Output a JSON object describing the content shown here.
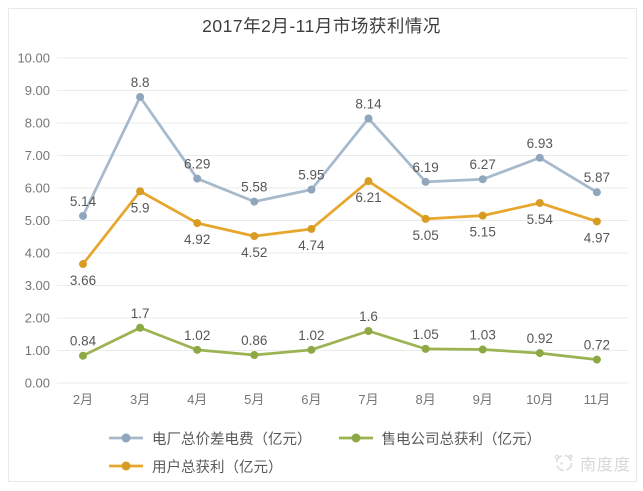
{
  "chart_data": {
    "type": "line",
    "title": "2017年2月-11月市场获利情况",
    "xlabel": "",
    "ylabel": "",
    "categories": [
      "2月",
      "3月",
      "4月",
      "5月",
      "6月",
      "7月",
      "8月",
      "9月",
      "10月",
      "11月"
    ],
    "series": [
      {
        "name": "电厂总价差电费（亿元）",
        "color": "#a7bacc",
        "marker_color": "#8fa6bc",
        "label_position": "above",
        "values": [
          5.14,
          8.8,
          6.29,
          5.58,
          5.95,
          8.14,
          6.19,
          6.27,
          6.93,
          5.87
        ]
      },
      {
        "name": "售电公司总获利（亿元）",
        "color": "#9bb351",
        "marker_color": "#8da844",
        "label_position": "above",
        "values": [
          0.84,
          1.7,
          1.02,
          0.86,
          1.02,
          1.6,
          1.05,
          1.03,
          0.92,
          0.72
        ]
      },
      {
        "name": "用户总获利（亿元）",
        "color": "#e7a62e",
        "marker_color": "#d79c23",
        "label_position": "below",
        "values": [
          3.66,
          5.9,
          4.92,
          4.52,
          4.74,
          6.21,
          5.05,
          5.15,
          5.54,
          4.97
        ]
      }
    ],
    "ylim": [
      0,
      10
    ],
    "ytick_step": 1,
    "ytick_decimals": 2,
    "grid": "horizontal",
    "legend_position": "bottom",
    "legend_order": [
      0,
      1,
      2
    ]
  },
  "colors": {
    "gridline": "#ebebeb",
    "axis_text": "#767676",
    "data_label": "#575757",
    "title_text": "#3d3d3d",
    "legend_text": "#595959",
    "watermark": "#d8d8d8",
    "frame_border": "#e9e9e9"
  },
  "watermark": {
    "icon": "nandudu-logo",
    "text": "南度度"
  }
}
